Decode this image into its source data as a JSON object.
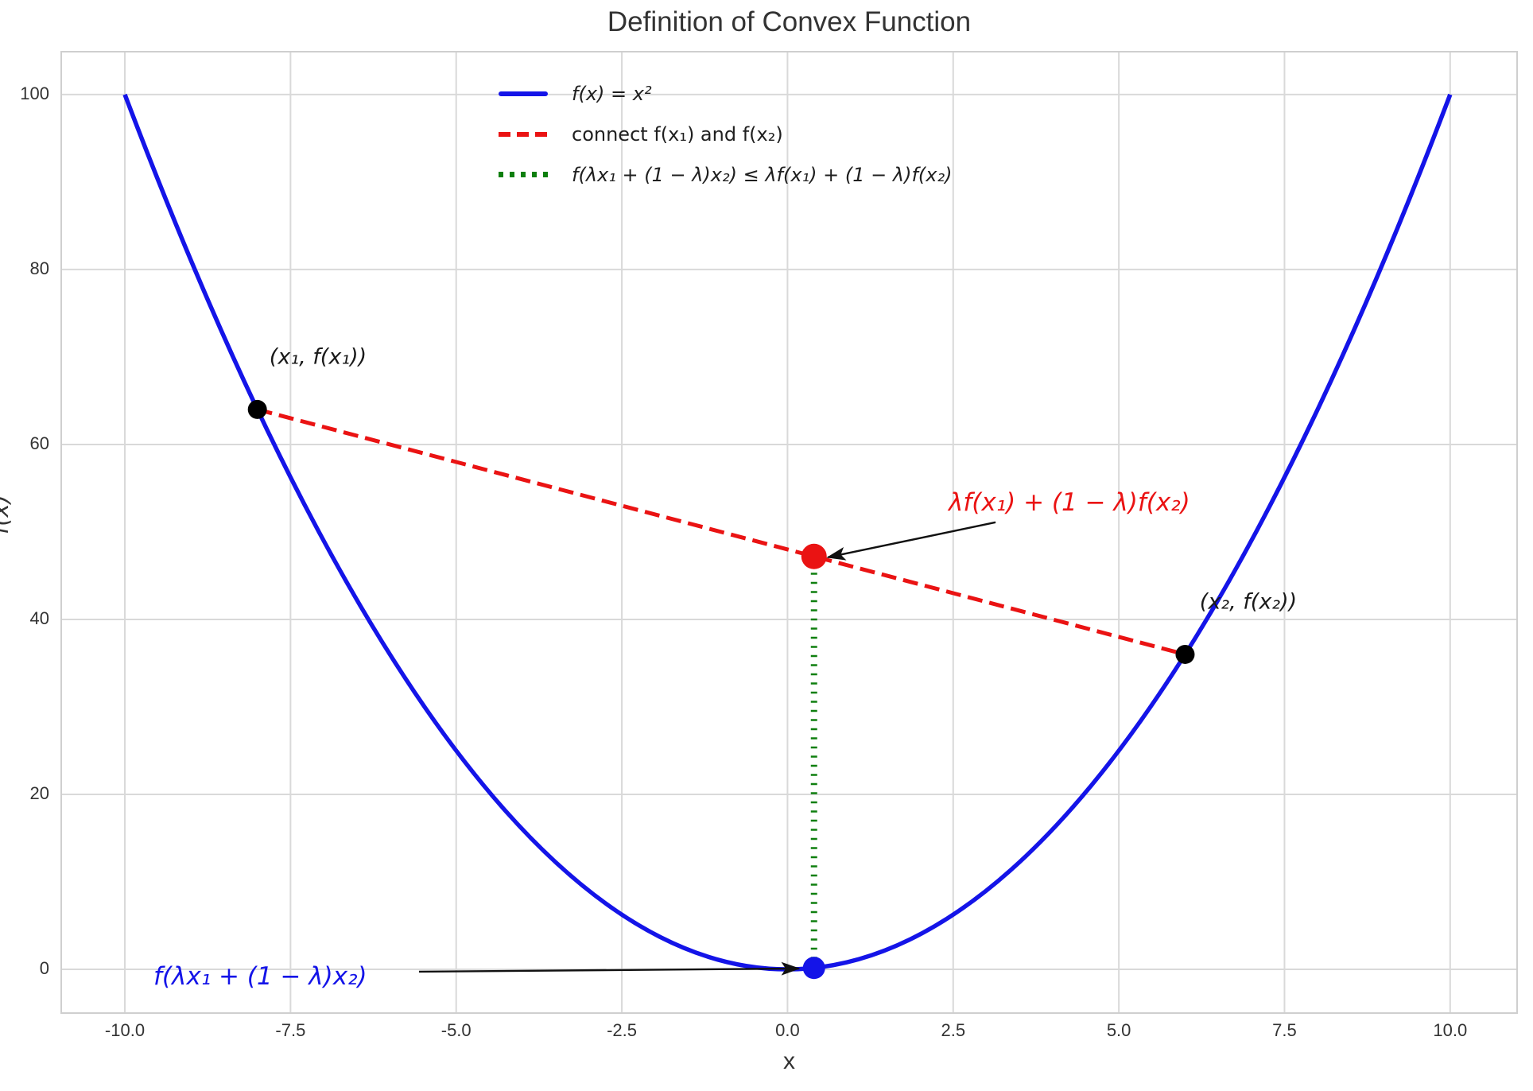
{
  "title": "Definition of Convex Function",
  "colors": {
    "curve_blue": "#1414E8",
    "chord_red": "#EA1313",
    "gap_green": "#0E7F0E",
    "point_black": "#000000",
    "grid_gray": "#D9D9D9",
    "text_dark": "#333333"
  },
  "chart_data": {
    "type": "line",
    "title": "Definition of Convex Function",
    "xlabel": "x",
    "ylabel": "f(x)",
    "grid": true,
    "legend_position": "upper center",
    "xlim": [
      -10.96,
      11.01
    ],
    "ylim": [
      -5.0,
      104.9
    ],
    "x_ticks": [
      -10,
      -7.5,
      -5,
      -2.5,
      0,
      2.5,
      5,
      7.5,
      10
    ],
    "x_tick_labels": [
      "-10.0",
      "-7.5",
      "-5.0",
      "-2.5",
      "0.0",
      "2.5",
      "5.0",
      "7.5",
      "10.0"
    ],
    "y_ticks": [
      0,
      20,
      40,
      60,
      80,
      100
    ],
    "y_tick_labels": [
      "0",
      "20",
      "40",
      "60",
      "80",
      "100"
    ],
    "series": [
      {
        "name": "f(x) = x²",
        "type": "function",
        "fn": "square",
        "x_range": [
          -10,
          10
        ],
        "color": "#1414E8",
        "style": "solid",
        "width": 5.5
      },
      {
        "name": "connect f(x₁) and f(x₂)",
        "type": "segment",
        "points": [
          [
            -8,
            64
          ],
          [
            6,
            36
          ]
        ],
        "color": "#EA1313",
        "style": "dashed",
        "width": 5
      },
      {
        "name": "f(λx₁ + (1 − λ)x₂) ≤ λf(x₁) + (1 − λ)f(x₂)",
        "type": "segment",
        "points": [
          [
            0.4,
            0.16
          ],
          [
            0.4,
            47.2
          ]
        ],
        "color": "#0E7F0E",
        "style": "dotted",
        "width": 8
      }
    ],
    "points": [
      {
        "x": -8,
        "y": 64,
        "color": "#000000",
        "r": 12,
        "label": "(x₁, f(x₁))"
      },
      {
        "x": 6,
        "y": 36,
        "color": "#000000",
        "r": 12,
        "label": "(x₂, f(x₂))"
      },
      {
        "x": 0.4,
        "y": 47.2,
        "color": "#EA1313",
        "r": 16,
        "label": "λf(x₁) + (1 − λ)f(x₂)"
      },
      {
        "x": 0.4,
        "y": 0.16,
        "color": "#1414E8",
        "r": 14,
        "label": "f(λx₁ + (1 − λ)x₂)"
      }
    ],
    "arrows": [
      {
        "from": [
          3.14,
          51.1
        ],
        "to": [
          0.61,
          47.1
        ]
      },
      {
        "from": [
          -5.56,
          -0.27
        ],
        "to": [
          0.17,
          0.09
        ]
      }
    ]
  }
}
